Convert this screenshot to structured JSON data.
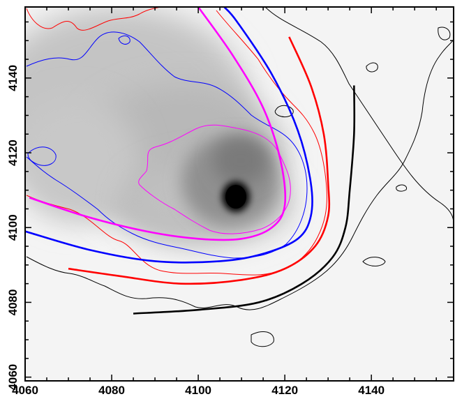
{
  "chart_data": {
    "type": "contour",
    "title": "",
    "xlabel": "",
    "ylabel": "",
    "xlim": [
      4060,
      4159
    ],
    "ylim": [
      4059,
      4159
    ],
    "x_ticks": [
      "4060",
      "4080",
      "4100",
      "4120",
      "4140"
    ],
    "y_ticks": [
      "4060",
      "4080",
      "4100",
      "4120",
      "4140"
    ],
    "grid": false,
    "background": "greyscale intensity image, brightest source near (4109, 4109)",
    "colors": {
      "black": "#000000",
      "red": "#ff0000",
      "blue": "#0000ff",
      "magenta": "#ff00ff"
    },
    "fitted_curves": [
      {
        "color": "black",
        "points": [
          [
            4085,
            4077
          ],
          [
            4100,
            4078
          ],
          [
            4114,
            4080
          ],
          [
            4124,
            4085
          ],
          [
            4131,
            4092
          ],
          [
            4134,
            4100
          ],
          [
            4135,
            4110
          ],
          [
            4136,
            4125
          ],
          [
            4136,
            4138
          ]
        ]
      },
      {
        "color": "red",
        "points": [
          [
            4070,
            4089
          ],
          [
            4082,
            4087
          ],
          [
            4096,
            4085
          ],
          [
            4110,
            4086
          ],
          [
            4120,
            4089
          ],
          [
            4127,
            4095
          ],
          [
            4130,
            4103
          ],
          [
            4130,
            4112
          ],
          [
            4129,
            4125
          ],
          [
            4126,
            4138
          ],
          [
            4121,
            4151
          ]
        ]
      },
      {
        "color": "blue",
        "points": [
          [
            4060,
            4099
          ],
          [
            4075,
            4094
          ],
          [
            4090,
            4091
          ],
          [
            4105,
            4091
          ],
          [
            4115,
            4093
          ],
          [
            4123,
            4097
          ],
          [
            4126,
            4103
          ],
          [
            4126,
            4112
          ],
          [
            4123,
            4126
          ],
          [
            4117,
            4141
          ],
          [
            4109,
            4155
          ],
          [
            4106,
            4159
          ]
        ]
      },
      {
        "color": "magenta",
        "points": [
          [
            4061,
            4108
          ],
          [
            4074,
            4103
          ],
          [
            4088,
            4099
          ],
          [
            4100,
            4097
          ],
          [
            4110,
            4097
          ],
          [
            4117,
            4100
          ],
          [
            4120,
            4106
          ],
          [
            4119,
            4118
          ],
          [
            4115,
            4132
          ],
          [
            4108,
            4146
          ],
          [
            4100,
            4159
          ]
        ]
      }
    ]
  }
}
